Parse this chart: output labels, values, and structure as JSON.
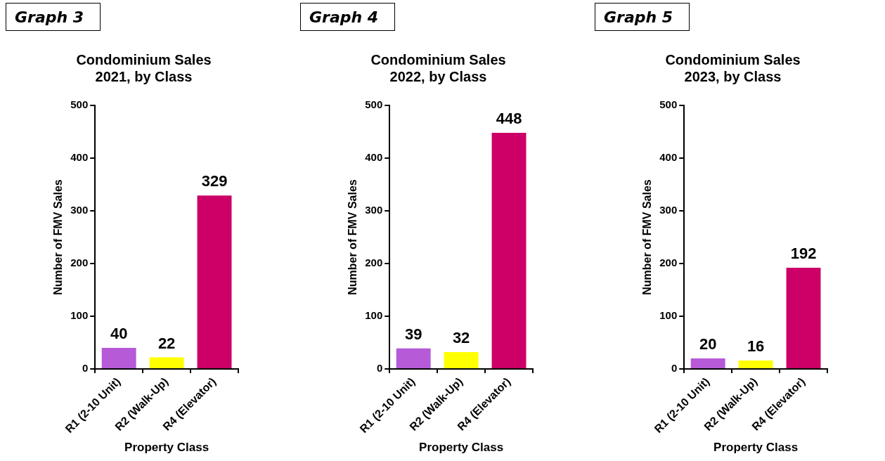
{
  "chart_data": [
    {
      "type": "bar",
      "title": "Condominium Sales\n2021, by Class",
      "xlabel": "Property Class",
      "ylabel": "Number of FMV Sales",
      "annotations": [
        "Graph 3"
      ],
      "categories": [
        "R1 (2-10 Unit)",
        "R2 (Walk-Up)",
        "R4 (Elevator)"
      ],
      "values": [
        40,
        22,
        329
      ],
      "colors": [
        "#b65ad8",
        "#ffff00",
        "#cc0066"
      ],
      "ylim": [
        0,
        500
      ],
      "yticks": [
        0,
        100,
        200,
        300,
        400,
        500
      ],
      "grid": false,
      "legend": false,
      "data_labels": true
    },
    {
      "type": "bar",
      "title": "Condominium Sales\n2022, by Class",
      "xlabel": "Property Class",
      "ylabel": "Number of FMV Sales",
      "annotations": [
        "Graph 4"
      ],
      "categories": [
        "R1 (2-10 Unit)",
        "R2 (Walk-Up)",
        "R4 (Elevator)"
      ],
      "values": [
        39,
        32,
        448
      ],
      "colors": [
        "#b65ad8",
        "#ffff00",
        "#cc0066"
      ],
      "ylim": [
        0,
        500
      ],
      "yticks": [
        0,
        100,
        200,
        300,
        400,
        500
      ],
      "grid": false,
      "legend": false,
      "data_labels": true
    },
    {
      "type": "bar",
      "title": "Condominium Sales\n2023, by Class",
      "xlabel": "Property Class",
      "ylabel": "Number of FMV Sales",
      "annotations": [
        "Graph 5"
      ],
      "categories": [
        "R1 (2-10 Unit)",
        "R2 (Walk-Up)",
        "R4 (Elevator)"
      ],
      "values": [
        20,
        16,
        192
      ],
      "colors": [
        "#b65ad8",
        "#ffff00",
        "#cc0066"
      ],
      "ylim": [
        0,
        500
      ],
      "yticks": [
        0,
        100,
        200,
        300,
        400,
        500
      ],
      "grid": false,
      "legend": false,
      "data_labels": true
    }
  ]
}
